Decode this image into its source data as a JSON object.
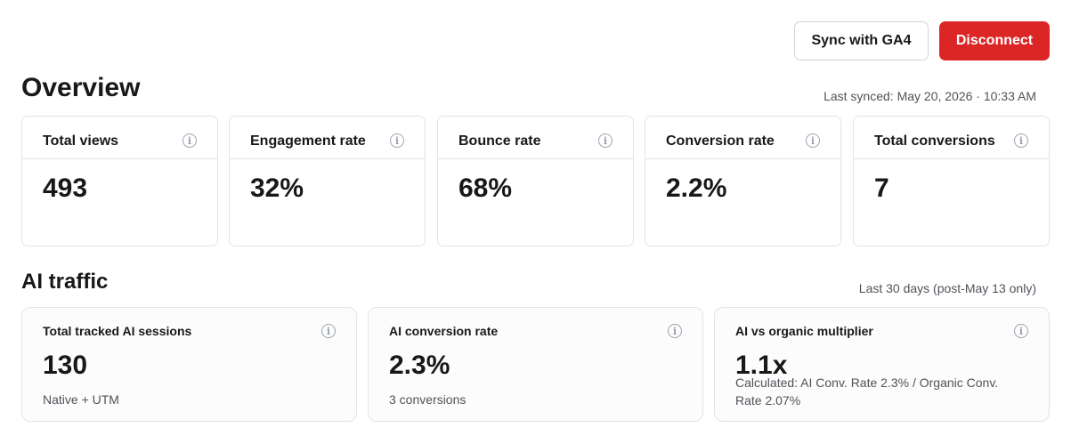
{
  "actions": {
    "sync_label": "Sync with GA4",
    "disconnect_label": "Disconnect"
  },
  "overview": {
    "title": "Overview",
    "last_synced": "Last synced: May 20, 2026 · 10:33 AM",
    "cards": [
      {
        "label": "Total views",
        "value": "493"
      },
      {
        "label": "Engagement rate",
        "value": "32%"
      },
      {
        "label": "Bounce rate",
        "value": "68%"
      },
      {
        "label": "Conversion rate",
        "value": "2.2%"
      },
      {
        "label": "Total conversions",
        "value": "7"
      }
    ]
  },
  "ai_traffic": {
    "title": "AI traffic",
    "range": "Last 30 days (post-May 13 only)",
    "cards": [
      {
        "label": "Total tracked AI sessions",
        "value": "130",
        "sub": "Native + UTM"
      },
      {
        "label": "AI conversion rate",
        "value": "2.3%",
        "sub": "3 conversions"
      },
      {
        "label": "AI vs organic multiplier",
        "value": "1.1x",
        "sub": "Calculated: AI Conv. Rate 2.3% / Organic Conv. Rate 2.07%"
      }
    ]
  },
  "icons": {
    "info": "info-circle-icon"
  },
  "colors": {
    "danger": "#dc2626",
    "border": "#e4e4e7",
    "text": "#18181b",
    "muted": "#52525b"
  }
}
